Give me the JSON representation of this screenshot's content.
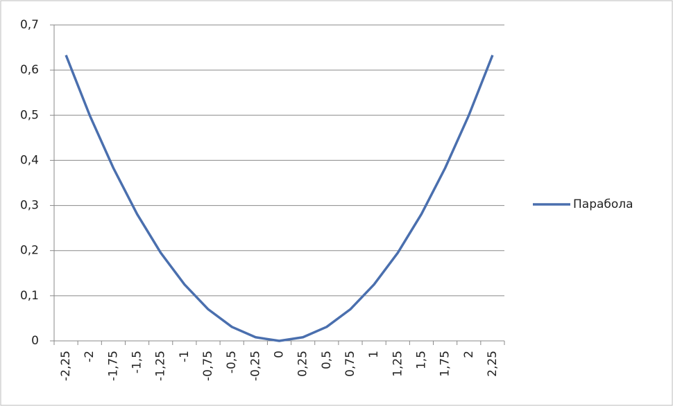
{
  "chart_data": {
    "type": "line",
    "categories": [
      "-2,25",
      "-2",
      "-1,75",
      "-1,5",
      "-1,25",
      "-1",
      "-0,75",
      "-0,5",
      "-0,25",
      "0",
      "0,25",
      "0,5",
      "0,75",
      "1",
      "1,25",
      "1,5",
      "1,75",
      "2",
      "2,25"
    ],
    "series": [
      {
        "name": "Парабола",
        "color": "#4a6fae",
        "values": [
          0.633,
          0.5,
          0.383,
          0.281,
          0.195,
          0.125,
          0.07,
          0.031,
          0.008,
          0,
          0.008,
          0.031,
          0.07,
          0.125,
          0.195,
          0.281,
          0.383,
          0.5,
          0.633
        ]
      }
    ],
    "ylim": [
      0,
      0.7
    ],
    "yticks": [
      0,
      {
        "value": 0.1,
        "label": "0,1"
      },
      {
        "value": 0.2,
        "label": "0,2"
      },
      {
        "value": 0.3,
        "label": "0,3"
      },
      {
        "value": 0.4,
        "label": "0,4"
      },
      {
        "value": 0.5,
        "label": "0,5"
      },
      {
        "value": 0.6,
        "label": "0,6"
      },
      {
        "value": 0.7,
        "label": "0,7"
      }
    ],
    "grid": true,
    "legend": "right"
  }
}
